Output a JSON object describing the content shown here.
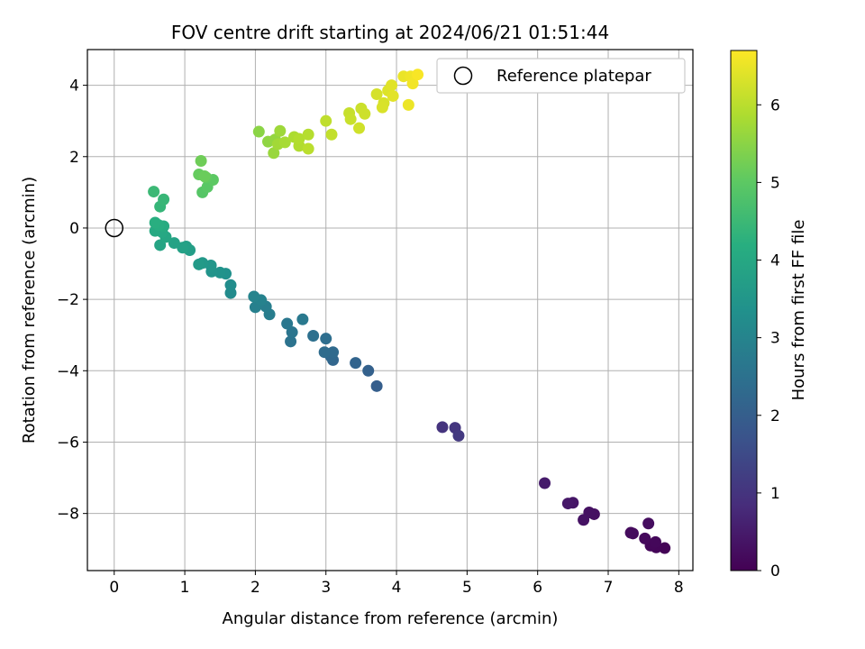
{
  "chart_data": {
    "type": "scatter",
    "title": "FOV centre drift starting at 2024/06/21 01:51:44",
    "xlabel": "Angular distance from reference (arcmin)",
    "ylabel": "Rotation from reference (arcmin)",
    "xlim": [
      -0.38,
      8.2
    ],
    "ylim": [
      -9.6,
      5.0
    ],
    "xticks": [
      0,
      1,
      2,
      3,
      4,
      5,
      6,
      7,
      8
    ],
    "yticks": [
      -8,
      -6,
      -4,
      -2,
      0,
      2,
      4
    ],
    "grid": true,
    "legend": {
      "position": "top-right",
      "entries": [
        "Reference platepar"
      ]
    },
    "reference_point": {
      "label": "Reference platepar",
      "x": 0,
      "y": 0
    },
    "colorbar": {
      "label": "Hours from first FF file",
      "colormap": "viridis",
      "range": [
        0,
        6.7
      ],
      "ticks": [
        0,
        1,
        2,
        3,
        4,
        5,
        6
      ]
    },
    "series": [
      {
        "points": [
          {
            "x": 7.8,
            "y": -8.97,
            "t": 0.05
          },
          {
            "x": 7.68,
            "y": -8.95,
            "t": 0.08
          },
          {
            "x": 7.6,
            "y": -8.9,
            "t": 0.1
          },
          {
            "x": 7.67,
            "y": -8.8,
            "t": 0.12
          },
          {
            "x": 7.52,
            "y": -8.7,
            "t": 0.15
          },
          {
            "x": 7.35,
            "y": -8.56,
            "t": 0.18
          },
          {
            "x": 7.32,
            "y": -8.54,
            "t": 0.2
          },
          {
            "x": 7.57,
            "y": -8.28,
            "t": 0.23
          },
          {
            "x": 6.8,
            "y": -8.02,
            "t": 0.28
          },
          {
            "x": 6.73,
            "y": -7.97,
            "t": 0.3
          },
          {
            "x": 6.65,
            "y": -8.18,
            "t": 0.33
          },
          {
            "x": 6.5,
            "y": -7.7,
            "t": 0.38
          },
          {
            "x": 6.43,
            "y": -7.72,
            "t": 0.42
          },
          {
            "x": 6.1,
            "y": -7.15,
            "t": 0.5
          },
          {
            "x": 4.65,
            "y": -5.58,
            "t": 1.0
          },
          {
            "x": 4.83,
            "y": -5.6,
            "t": 1.05
          },
          {
            "x": 4.88,
            "y": -5.82,
            "t": 1.1
          },
          {
            "x": 3.72,
            "y": -4.43,
            "t": 2.0
          },
          {
            "x": 3.6,
            "y": -4.0,
            "t": 2.08
          },
          {
            "x": 3.42,
            "y": -3.78,
            "t": 2.15
          },
          {
            "x": 3.1,
            "y": -3.7,
            "t": 2.2
          },
          {
            "x": 3.07,
            "y": -3.6,
            "t": 2.25
          },
          {
            "x": 3.1,
            "y": -3.48,
            "t": 2.3
          },
          {
            "x": 2.98,
            "y": -3.48,
            "t": 2.35
          },
          {
            "x": 3.0,
            "y": -3.1,
            "t": 2.4
          },
          {
            "x": 2.82,
            "y": -3.02,
            "t": 2.45
          },
          {
            "x": 2.5,
            "y": -3.18,
            "t": 2.55
          },
          {
            "x": 2.52,
            "y": -2.92,
            "t": 2.6
          },
          {
            "x": 2.45,
            "y": -2.68,
            "t": 2.65
          },
          {
            "x": 2.67,
            "y": -2.56,
            "t": 2.7
          },
          {
            "x": 2.2,
            "y": -2.42,
            "t": 2.8
          },
          {
            "x": 2.15,
            "y": -2.2,
            "t": 2.85
          },
          {
            "x": 2.0,
            "y": -2.22,
            "t": 2.9
          },
          {
            "x": 2.08,
            "y": -2.02,
            "t": 2.95
          },
          {
            "x": 1.98,
            "y": -1.92,
            "t": 3.0
          },
          {
            "x": 1.65,
            "y": -1.82,
            "t": 3.2
          },
          {
            "x": 1.65,
            "y": -1.6,
            "t": 3.25
          },
          {
            "x": 1.58,
            "y": -1.28,
            "t": 3.35
          },
          {
            "x": 1.5,
            "y": -1.25,
            "t": 3.4
          },
          {
            "x": 1.38,
            "y": -1.22,
            "t": 3.45
          },
          {
            "x": 1.37,
            "y": -1.05,
            "t": 3.5
          },
          {
            "x": 1.25,
            "y": -0.98,
            "t": 3.55
          },
          {
            "x": 1.2,
            "y": -1.02,
            "t": 3.6
          },
          {
            "x": 1.07,
            "y": -0.62,
            "t": 3.7
          },
          {
            "x": 1.02,
            "y": -0.52,
            "t": 3.75
          },
          {
            "x": 0.97,
            "y": -0.55,
            "t": 3.8
          },
          {
            "x": 0.85,
            "y": -0.42,
            "t": 3.85
          },
          {
            "x": 0.65,
            "y": -0.48,
            "t": 3.9
          },
          {
            "x": 0.73,
            "y": -0.25,
            "t": 3.95
          },
          {
            "x": 0.68,
            "y": -0.12,
            "t": 4.0
          },
          {
            "x": 0.58,
            "y": -0.08,
            "t": 4.05
          },
          {
            "x": 0.7,
            "y": 0.05,
            "t": 4.1
          },
          {
            "x": 0.63,
            "y": 0.08,
            "t": 4.15
          },
          {
            "x": 0.58,
            "y": 0.15,
            "t": 4.2
          },
          {
            "x": 0.65,
            "y": 0.6,
            "t": 4.4
          },
          {
            "x": 0.7,
            "y": 0.8,
            "t": 4.45
          },
          {
            "x": 0.56,
            "y": 1.02,
            "t": 4.5
          },
          {
            "x": 1.25,
            "y": 1.0,
            "t": 4.9
          },
          {
            "x": 1.32,
            "y": 1.15,
            "t": 4.95
          },
          {
            "x": 1.4,
            "y": 1.35,
            "t": 5.0
          },
          {
            "x": 1.3,
            "y": 1.42,
            "t": 5.05
          },
          {
            "x": 1.2,
            "y": 1.5,
            "t": 5.1
          },
          {
            "x": 1.28,
            "y": 1.45,
            "t": 5.15
          },
          {
            "x": 1.23,
            "y": 1.88,
            "t": 5.2
          },
          {
            "x": 2.05,
            "y": 2.7,
            "t": 5.5
          },
          {
            "x": 2.18,
            "y": 2.42,
            "t": 5.55
          },
          {
            "x": 2.28,
            "y": 2.48,
            "t": 5.6
          },
          {
            "x": 2.26,
            "y": 2.1,
            "t": 5.65
          },
          {
            "x": 2.35,
            "y": 2.72,
            "t": 5.7
          },
          {
            "x": 2.32,
            "y": 2.35,
            "t": 5.75
          },
          {
            "x": 2.42,
            "y": 2.4,
            "t": 5.8
          },
          {
            "x": 2.55,
            "y": 2.55,
            "t": 5.85
          },
          {
            "x": 2.62,
            "y": 2.3,
            "t": 5.9
          },
          {
            "x": 2.62,
            "y": 2.5,
            "t": 5.92
          },
          {
            "x": 2.75,
            "y": 2.62,
            "t": 5.95
          },
          {
            "x": 2.75,
            "y": 2.22,
            "t": 6.0
          },
          {
            "x": 3.0,
            "y": 3.0,
            "t": 6.05
          },
          {
            "x": 3.08,
            "y": 2.62,
            "t": 6.08
          },
          {
            "x": 3.33,
            "y": 3.22,
            "t": 6.12
          },
          {
            "x": 3.35,
            "y": 3.05,
            "t": 6.15
          },
          {
            "x": 3.5,
            "y": 3.35,
            "t": 6.18
          },
          {
            "x": 3.55,
            "y": 3.2,
            "t": 6.2
          },
          {
            "x": 3.47,
            "y": 2.8,
            "t": 6.22
          },
          {
            "x": 3.72,
            "y": 3.75,
            "t": 6.28
          },
          {
            "x": 3.82,
            "y": 3.5,
            "t": 6.3
          },
          {
            "x": 3.8,
            "y": 3.38,
            "t": 6.32
          },
          {
            "x": 3.88,
            "y": 3.85,
            "t": 6.36
          },
          {
            "x": 3.93,
            "y": 4.0,
            "t": 6.4
          },
          {
            "x": 3.95,
            "y": 3.7,
            "t": 6.42
          },
          {
            "x": 4.1,
            "y": 4.25,
            "t": 6.5
          },
          {
            "x": 4.17,
            "y": 3.45,
            "t": 6.52
          },
          {
            "x": 4.2,
            "y": 4.25,
            "t": 6.55
          },
          {
            "x": 4.23,
            "y": 4.05,
            "t": 6.58
          },
          {
            "x": 4.3,
            "y": 4.3,
            "t": 6.65
          }
        ]
      }
    ]
  }
}
